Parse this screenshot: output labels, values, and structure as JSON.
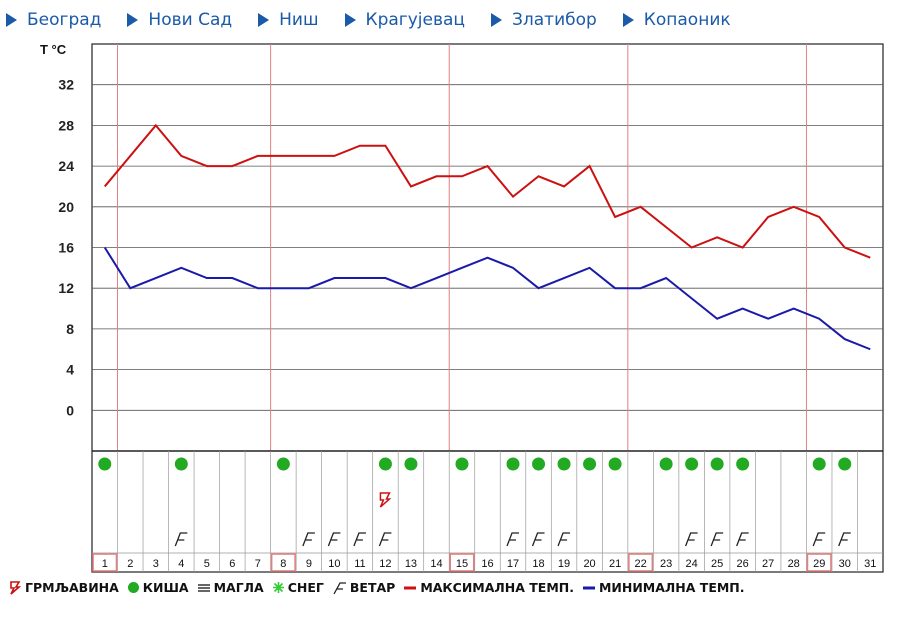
{
  "nav": [
    {
      "label": "Београд"
    },
    {
      "label": "Нови Сад"
    },
    {
      "label": "Ниш"
    },
    {
      "label": "Крагујевац"
    },
    {
      "label": "Златибор"
    },
    {
      "label": "Копаоник"
    }
  ],
  "colors": {
    "nav": "#1a5aa8",
    "max": "#cc1111",
    "min": "#1a1aa8",
    "rain": "#22aa22",
    "grid": "#555555",
    "week": "#e08080"
  },
  "legend": {
    "thunder": "ГРМЉАВИНА",
    "rain": "КИША",
    "fog": "МАГЛА",
    "snow": "СНЕГ",
    "wind": "ВЕТАР",
    "max": "МАКСИМАЛНА ТЕМП.",
    "min": "МИНИМАЛНА ТЕМП."
  },
  "chart_data": {
    "type": "area",
    "ylabel": "T °C",
    "ylim": [
      -4,
      36
    ],
    "yticks": [
      0,
      4,
      8,
      12,
      16,
      20,
      24,
      28,
      32
    ],
    "grid": true,
    "legend_position": "bottom",
    "days": [
      1,
      2,
      3,
      4,
      5,
      6,
      7,
      8,
      9,
      10,
      11,
      12,
      13,
      14,
      15,
      16,
      17,
      18,
      19,
      20,
      21,
      22,
      23,
      24,
      25,
      26,
      27,
      28,
      29,
      30,
      31
    ],
    "highlighted_days": [
      1,
      8,
      15,
      22,
      29
    ],
    "series": [
      {
        "name": "МАКСИМАЛНА ТЕМП.",
        "color": "#cc1111",
        "values": [
          22,
          25,
          28,
          25,
          24,
          24,
          25,
          25,
          25,
          25,
          26,
          26,
          22,
          23,
          23,
          24,
          21,
          23,
          22,
          24,
          19,
          20,
          18,
          16,
          17,
          16,
          19,
          20,
          19,
          16,
          15
        ]
      },
      {
        "name": "МИНИМАЛНА ТЕМП.",
        "color": "#1a1aa8",
        "values": [
          16,
          12,
          13,
          14,
          13,
          13,
          12,
          12,
          12,
          13,
          13,
          13,
          12,
          13,
          14,
          15,
          14,
          12,
          13,
          14,
          12,
          12,
          13,
          11,
          9,
          10,
          9,
          10,
          9,
          7,
          6
        ]
      }
    ],
    "rain_days": [
      1,
      4,
      8,
      12,
      13,
      15,
      17,
      18,
      19,
      20,
      21,
      23,
      24,
      25,
      26,
      29,
      30
    ],
    "wind_days": [
      4,
      9,
      10,
      11,
      12,
      17,
      18,
      19,
      24,
      25,
      26,
      29,
      30
    ],
    "thunder_days": [
      12
    ]
  }
}
